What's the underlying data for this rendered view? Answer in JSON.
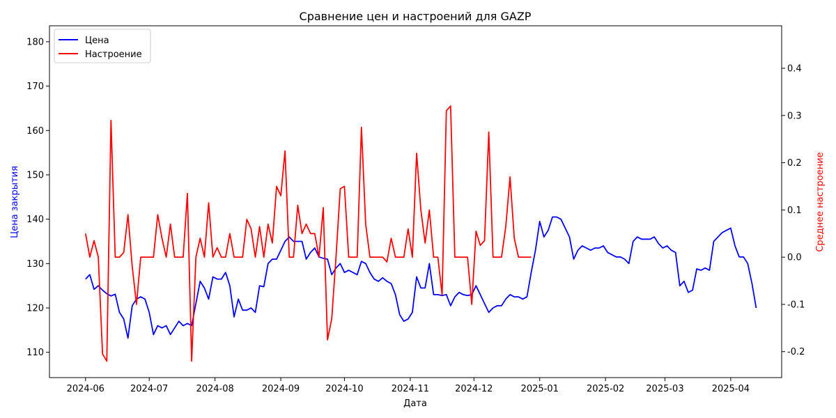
{
  "chart_data": {
    "type": "line",
    "title": "Сравнение цен и настроений для GAZP",
    "xlabel": "Дата",
    "ylabel_left": "Цена закрытия",
    "ylabel_right": "Среднее настроение",
    "ylabel_left_color": "#0000ff",
    "ylabel_right_color": "#ff0000",
    "grid": false,
    "legend_position": "top-left",
    "x_ticks": [
      "2024-06",
      "2024-07",
      "2024-08",
      "2024-09",
      "2024-10",
      "2024-11",
      "2024-12",
      "2025-01",
      "2025-02",
      "2025-03",
      "2025-04"
    ],
    "y_left_ticks": [
      110,
      120,
      130,
      140,
      150,
      160,
      170,
      180
    ],
    "y_right_ticks": [
      -0.2,
      -0.1,
      0.0,
      0.1,
      0.2,
      0.3,
      0.4
    ],
    "y_left_range": [
      104.3,
      183.6
    ],
    "y_right_range": [
      -0.255,
      0.49
    ],
    "x_range": [
      "2024-05-15",
      "2025-04-25"
    ],
    "series": [
      {
        "name": "Цена",
        "axis": "left",
        "color": "#0000ff",
        "points": [
          [
            "2024-06-01",
            126.5
          ],
          [
            "2024-06-03",
            127.5
          ],
          [
            "2024-06-05",
            124.2
          ],
          [
            "2024-06-07",
            125.0
          ],
          [
            "2024-06-09",
            124.0
          ],
          [
            "2024-06-11",
            123.2
          ],
          [
            "2024-06-13",
            122.7
          ],
          [
            "2024-06-15",
            123.1
          ],
          [
            "2024-06-17",
            119.0
          ],
          [
            "2024-06-19",
            117.5
          ],
          [
            "2024-06-21",
            113.2
          ],
          [
            "2024-06-23",
            120.5
          ],
          [
            "2024-06-25",
            122.0
          ],
          [
            "2024-06-27",
            122.5
          ],
          [
            "2024-06-29",
            122.0
          ],
          [
            "2024-07-01",
            119.0
          ],
          [
            "2024-07-03",
            114.0
          ],
          [
            "2024-07-05",
            116.0
          ],
          [
            "2024-07-07",
            115.5
          ],
          [
            "2024-07-09",
            116.0
          ],
          [
            "2024-07-11",
            114.0
          ],
          [
            "2024-07-13",
            115.5
          ],
          [
            "2024-07-15",
            117.0
          ],
          [
            "2024-07-17",
            116.0
          ],
          [
            "2024-07-19",
            116.5
          ],
          [
            "2024-07-21",
            116.0
          ],
          [
            "2024-07-23",
            121.0
          ],
          [
            "2024-07-25",
            126.0
          ],
          [
            "2024-07-27",
            124.5
          ],
          [
            "2024-07-29",
            122.0
          ],
          [
            "2024-07-31",
            127.0
          ],
          [
            "2024-08-02",
            126.5
          ],
          [
            "2024-08-04",
            126.5
          ],
          [
            "2024-08-06",
            128.0
          ],
          [
            "2024-08-08",
            125.0
          ],
          [
            "2024-08-10",
            118.0
          ],
          [
            "2024-08-12",
            122.0
          ],
          [
            "2024-08-14",
            119.5
          ],
          [
            "2024-08-16",
            119.5
          ],
          [
            "2024-08-18",
            120.0
          ],
          [
            "2024-08-20",
            119.0
          ],
          [
            "2024-08-22",
            125.0
          ],
          [
            "2024-08-24",
            124.8
          ],
          [
            "2024-08-26",
            130.0
          ],
          [
            "2024-08-28",
            131.0
          ],
          [
            "2024-08-30",
            131.0
          ],
          [
            "2024-09-01",
            133.0
          ],
          [
            "2024-09-03",
            135.0
          ],
          [
            "2024-09-05",
            136.0
          ],
          [
            "2024-09-07",
            135.0
          ],
          [
            "2024-09-09",
            135.0
          ],
          [
            "2024-09-11",
            135.0
          ],
          [
            "2024-09-13",
            131.0
          ],
          [
            "2024-09-15",
            132.5
          ],
          [
            "2024-09-17",
            133.5
          ],
          [
            "2024-09-19",
            131.5
          ],
          [
            "2024-09-21",
            131.2
          ],
          [
            "2024-09-23",
            131.0
          ],
          [
            "2024-09-25",
            127.5
          ],
          [
            "2024-09-27",
            129.0
          ],
          [
            "2024-09-29",
            130.0
          ],
          [
            "2024-10-01",
            128.0
          ],
          [
            "2024-10-03",
            128.5
          ],
          [
            "2024-10-05",
            128.0
          ],
          [
            "2024-10-07",
            127.5
          ],
          [
            "2024-10-09",
            130.5
          ],
          [
            "2024-10-11",
            130.0
          ],
          [
            "2024-10-13",
            128.0
          ],
          [
            "2024-10-15",
            126.5
          ],
          [
            "2024-10-17",
            126.0
          ],
          [
            "2024-10-19",
            126.8
          ],
          [
            "2024-10-21",
            126.0
          ],
          [
            "2024-10-23",
            125.5
          ],
          [
            "2024-10-25",
            123.0
          ],
          [
            "2024-10-27",
            118.5
          ],
          [
            "2024-10-29",
            117.0
          ],
          [
            "2024-10-31",
            117.5
          ],
          [
            "2024-11-02",
            119.0
          ],
          [
            "2024-11-04",
            127.0
          ],
          [
            "2024-11-06",
            124.5
          ],
          [
            "2024-11-08",
            124.5
          ],
          [
            "2024-11-10",
            130.0
          ],
          [
            "2024-11-12",
            123.0
          ],
          [
            "2024-11-14",
            123.0
          ],
          [
            "2024-11-16",
            122.8
          ],
          [
            "2024-11-18",
            123.0
          ],
          [
            "2024-11-20",
            120.5
          ],
          [
            "2024-11-22",
            122.5
          ],
          [
            "2024-11-24",
            123.5
          ],
          [
            "2024-11-26",
            123.0
          ],
          [
            "2024-11-28",
            122.8
          ],
          [
            "2024-11-30",
            123.0
          ],
          [
            "2024-12-02",
            125.0
          ],
          [
            "2024-12-04",
            123.0
          ],
          [
            "2024-12-06",
            121.0
          ],
          [
            "2024-12-08",
            119.0
          ],
          [
            "2024-12-10",
            120.0
          ],
          [
            "2024-12-12",
            120.5
          ],
          [
            "2024-12-14",
            120.5
          ],
          [
            "2024-12-16",
            122.0
          ],
          [
            "2024-12-18",
            123.0
          ],
          [
            "2024-12-20",
            122.5
          ],
          [
            "2024-12-22",
            122.5
          ],
          [
            "2024-12-24",
            122.0
          ],
          [
            "2024-12-26",
            122.5
          ],
          [
            "2024-12-28",
            128.0
          ],
          [
            "2024-12-30",
            133.0
          ],
          [
            "2025-01-01",
            139.5
          ],
          [
            "2025-01-03",
            136.0
          ],
          [
            "2025-01-05",
            137.5
          ],
          [
            "2025-01-07",
            140.5
          ],
          [
            "2025-01-09",
            140.5
          ],
          [
            "2025-01-11",
            140.0
          ],
          [
            "2025-01-13",
            138.0
          ],
          [
            "2025-01-15",
            136.0
          ],
          [
            "2025-01-17",
            131.0
          ],
          [
            "2025-01-19",
            133.0
          ],
          [
            "2025-01-21",
            134.0
          ],
          [
            "2025-01-23",
            133.5
          ],
          [
            "2025-01-25",
            133.0
          ],
          [
            "2025-01-27",
            133.5
          ],
          [
            "2025-01-29",
            133.5
          ],
          [
            "2025-01-31",
            134.0
          ],
          [
            "2025-02-02",
            132.5
          ],
          [
            "2025-02-04",
            132.0
          ],
          [
            "2025-02-06",
            131.5
          ],
          [
            "2025-02-08",
            131.5
          ],
          [
            "2025-02-10",
            131.0
          ],
          [
            "2025-02-12",
            130.0
          ],
          [
            "2025-02-14",
            135.0
          ],
          [
            "2025-02-16",
            136.0
          ],
          [
            "2025-02-18",
            135.5
          ],
          [
            "2025-02-20",
            135.5
          ],
          [
            "2025-02-22",
            135.5
          ],
          [
            "2025-02-24",
            136.0
          ],
          [
            "2025-02-26",
            134.5
          ],
          [
            "2025-02-28",
            133.5
          ],
          [
            "2025-03-02",
            134.0
          ],
          [
            "2025-03-04",
            133.0
          ],
          [
            "2025-03-06",
            132.5
          ],
          [
            "2025-03-08",
            125.0
          ],
          [
            "2025-03-10",
            126.0
          ],
          [
            "2025-03-12",
            123.5
          ],
          [
            "2025-03-14",
            124.0
          ],
          [
            "2025-03-16",
            128.8
          ],
          [
            "2025-03-18",
            128.5
          ],
          [
            "2025-03-20",
            129.0
          ],
          [
            "2025-03-22",
            128.5
          ],
          [
            "2025-03-24",
            135.0
          ],
          [
            "2025-03-26",
            136.0
          ],
          [
            "2025-03-28",
            137.0
          ],
          [
            "2025-03-30",
            137.5
          ],
          [
            "2025-04-01",
            138.0
          ],
          [
            "2025-04-03",
            134.0
          ],
          [
            "2025-04-05",
            131.5
          ],
          [
            "2025-04-07",
            131.5
          ],
          [
            "2025-04-09",
            130.0
          ],
          [
            "2025-04-11",
            125.5
          ],
          [
            "2025-04-13",
            120.0
          ]
        ]
      },
      {
        "name": "Настроение",
        "axis": "right",
        "color": "#ff0000",
        "points": [
          [
            "2024-06-01",
            0.05
          ],
          [
            "2024-06-03",
            0.0
          ],
          [
            "2024-06-05",
            0.035
          ],
          [
            "2024-06-07",
            0.0
          ],
          [
            "2024-06-09",
            -0.205
          ],
          [
            "2024-06-11",
            -0.22
          ],
          [
            "2024-06-13",
            0.29
          ],
          [
            "2024-06-15",
            0.0
          ],
          [
            "2024-06-17",
            0.0
          ],
          [
            "2024-06-19",
            0.01
          ],
          [
            "2024-06-21",
            0.09
          ],
          [
            "2024-06-23",
            -0.02
          ],
          [
            "2024-06-25",
            -0.1
          ],
          [
            "2024-06-27",
            0.0
          ],
          [
            "2024-06-29",
            0.0
          ],
          [
            "2024-07-01",
            0.0
          ],
          [
            "2024-07-03",
            0.0
          ],
          [
            "2024-07-05",
            0.09
          ],
          [
            "2024-07-07",
            0.04
          ],
          [
            "2024-07-09",
            0.0
          ],
          [
            "2024-07-11",
            0.07
          ],
          [
            "2024-07-13",
            0.0
          ],
          [
            "2024-07-15",
            0.0
          ],
          [
            "2024-07-17",
            0.0
          ],
          [
            "2024-07-19",
            0.135
          ],
          [
            "2024-07-21",
            -0.22
          ],
          [
            "2024-07-23",
            0.0
          ],
          [
            "2024-07-25",
            0.04
          ],
          [
            "2024-07-27",
            0.0
          ],
          [
            "2024-07-29",
            0.115
          ],
          [
            "2024-07-31",
            0.0
          ],
          [
            "2024-08-02",
            0.02
          ],
          [
            "2024-08-04",
            0.0
          ],
          [
            "2024-08-06",
            0.0
          ],
          [
            "2024-08-08",
            0.05
          ],
          [
            "2024-08-10",
            0.0
          ],
          [
            "2024-08-12",
            0.0
          ],
          [
            "2024-08-14",
            0.0
          ],
          [
            "2024-08-16",
            0.08
          ],
          [
            "2024-08-18",
            0.06
          ],
          [
            "2024-08-20",
            0.0
          ],
          [
            "2024-08-22",
            0.065
          ],
          [
            "2024-08-24",
            0.0
          ],
          [
            "2024-08-26",
            0.07
          ],
          [
            "2024-08-28",
            0.03
          ],
          [
            "2024-08-30",
            0.15
          ],
          [
            "2024-09-01",
            0.13
          ],
          [
            "2024-09-03",
            0.225
          ],
          [
            "2024-09-05",
            0.0
          ],
          [
            "2024-09-07",
            0.0
          ],
          [
            "2024-09-09",
            0.11
          ],
          [
            "2024-09-11",
            0.05
          ],
          [
            "2024-09-13",
            0.07
          ],
          [
            "2024-09-15",
            0.05
          ],
          [
            "2024-09-17",
            0.05
          ],
          [
            "2024-09-19",
            0.0
          ],
          [
            "2024-09-21",
            0.105
          ],
          [
            "2024-09-23",
            -0.175
          ],
          [
            "2024-09-25",
            -0.13
          ],
          [
            "2024-09-27",
            0.0
          ],
          [
            "2024-09-29",
            0.145
          ],
          [
            "2024-10-01",
            0.15
          ],
          [
            "2024-10-03",
            0.0
          ],
          [
            "2024-10-05",
            0.0
          ],
          [
            "2024-10-07",
            0.0
          ],
          [
            "2024-10-09",
            0.275
          ],
          [
            "2024-10-11",
            0.07
          ],
          [
            "2024-10-13",
            0.0
          ],
          [
            "2024-10-15",
            0.0
          ],
          [
            "2024-10-17",
            0.0
          ],
          [
            "2024-10-19",
            0.0
          ],
          [
            "2024-10-21",
            -0.01
          ],
          [
            "2024-10-23",
            0.04
          ],
          [
            "2024-10-25",
            0.0
          ],
          [
            "2024-10-27",
            0.0
          ],
          [
            "2024-10-29",
            0.0
          ],
          [
            "2024-10-31",
            0.06
          ],
          [
            "2024-11-02",
            0.0
          ],
          [
            "2024-11-04",
            0.22
          ],
          [
            "2024-11-06",
            0.1
          ],
          [
            "2024-11-08",
            0.03
          ],
          [
            "2024-11-10",
            0.1
          ],
          [
            "2024-11-12",
            0.0
          ],
          [
            "2024-11-14",
            0.0
          ],
          [
            "2024-11-16",
            -0.08
          ],
          [
            "2024-11-18",
            0.31
          ],
          [
            "2024-11-20",
            0.32
          ],
          [
            "2024-11-22",
            0.0
          ],
          [
            "2024-11-24",
            0.0
          ],
          [
            "2024-11-26",
            0.0
          ],
          [
            "2024-11-28",
            0.0
          ],
          [
            "2024-11-30",
            -0.1
          ],
          [
            "2024-12-02",
            0.055
          ],
          [
            "2024-12-04",
            0.025
          ],
          [
            "2024-12-06",
            0.035
          ],
          [
            "2024-12-08",
            0.265
          ],
          [
            "2024-12-10",
            0.0
          ],
          [
            "2024-12-12",
            0.0
          ],
          [
            "2024-12-14",
            0.0
          ],
          [
            "2024-12-16",
            0.065
          ],
          [
            "2024-12-18",
            0.17
          ],
          [
            "2024-12-20",
            0.04
          ],
          [
            "2024-12-22",
            0.0
          ],
          [
            "2024-12-24",
            0.0
          ],
          [
            "2024-12-26",
            0.0
          ],
          [
            "2024-12-28",
            0.0
          ]
        ]
      }
    ]
  }
}
